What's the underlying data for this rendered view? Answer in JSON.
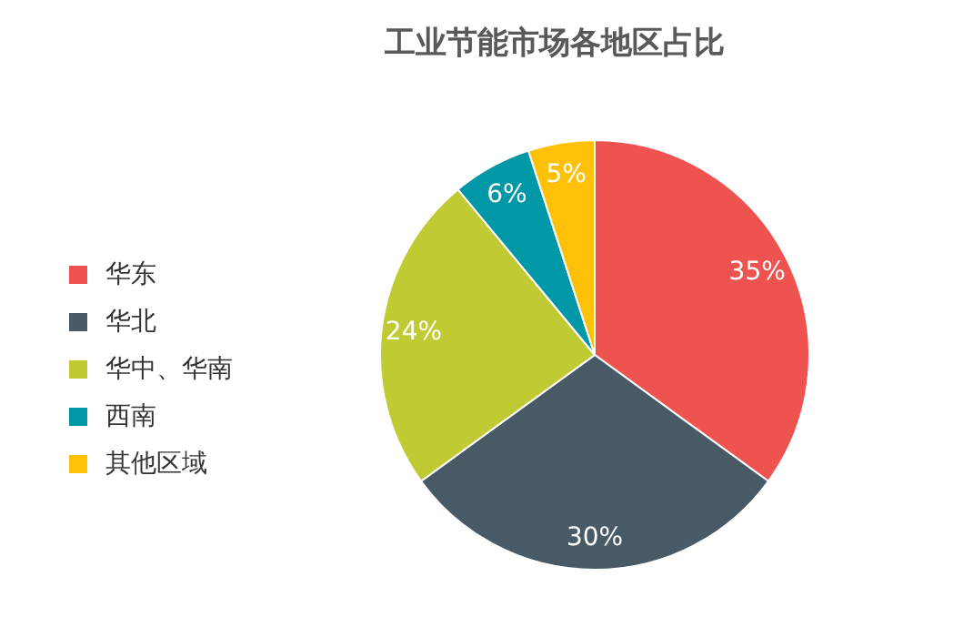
{
  "chart_data": {
    "type": "pie",
    "title": "工业节能市场各地区占比",
    "categories": [
      "华东",
      "华北",
      "华中、华南",
      "西南",
      "其他区域"
    ],
    "values": [
      35,
      30,
      24,
      6,
      5
    ],
    "colors": [
      "#ef5350",
      "#475a66",
      "#c0ca33",
      "#0097a7",
      "#ffc107"
    ],
    "value_labels": [
      "35%",
      "30%",
      "24%",
      "6%",
      "5%"
    ],
    "legend": "left"
  }
}
